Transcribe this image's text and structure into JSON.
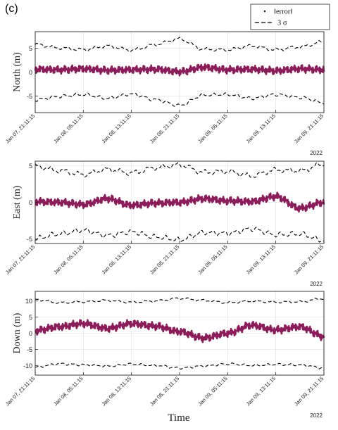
{
  "panel_label": "(c)",
  "legend": {
    "entries": [
      {
        "label": "‖error‖",
        "marker": "dot"
      },
      {
        "label": "3 σ",
        "marker": "dashed-line"
      }
    ]
  },
  "colors": {
    "error": "#8b1d5a",
    "sigma": "#000000",
    "grid": "#e6e6e6",
    "axis": "#262626"
  },
  "xlabel": "Time",
  "year_note": "2022",
  "chart_data": [
    {
      "type": "line",
      "ylabel": "North (m)",
      "ylim": [
        -8.5,
        8.5
      ],
      "yticks": [
        -5,
        0,
        5
      ],
      "grid": true,
      "x_ticklabels": [
        "Jan 07, 21:11:15",
        "Jan 08, 05:11:15",
        "Jan 08, 13:11:15",
        "Jan 08, 21:11:15",
        "Jan 09, 05:11:15",
        "Jan 09, 13:11:15",
        "Jan 09, 21:11:15"
      ],
      "x": [
        0,
        4,
        8,
        12,
        16,
        20,
        24,
        28,
        32,
        36,
        40,
        44,
        48
      ],
      "series": [
        {
          "name": "‖error‖",
          "values": [
            0.6,
            0.5,
            0.7,
            0.4,
            0.5,
            0.6,
            0.1,
            1.0,
            0.5,
            0.6,
            0.3,
            0.7,
            0.5
          ]
        },
        {
          "name": "3 σ",
          "values": [
            5.8,
            5.1,
            4.7,
            5.5,
            4.6,
            5.8,
            7.0,
            4.8,
            4.7,
            5.5,
            4.7,
            5.3,
            6.4
          ]
        }
      ]
    },
    {
      "type": "line",
      "ylabel": "East (m)",
      "ylim": [
        -5.6,
        5.6
      ],
      "yticks": [
        -5,
        0,
        5
      ],
      "grid": true,
      "x_ticklabels": [
        "Jan 07, 21:11:15",
        "Jan 08, 05:11:15",
        "Jan 08, 13:11:15",
        "Jan 08, 21:11:15",
        "Jan 09, 05:11:15",
        "Jan 09, 13:11:15",
        "Jan 09, 21:11:15"
      ],
      "x": [
        0,
        4,
        8,
        12,
        16,
        20,
        24,
        28,
        32,
        36,
        40,
        44,
        48
      ],
      "series": [
        {
          "name": "‖error‖",
          "values": [
            0.1,
            0.0,
            -0.3,
            0.5,
            -0.4,
            -0.1,
            0.0,
            0.5,
            0.2,
            0.1,
            0.8,
            -0.8,
            0.0
          ]
        },
        {
          "name": "3 σ",
          "values": [
            4.9,
            4.3,
            3.8,
            4.5,
            4.0,
            4.7,
            5.1,
            4.1,
            4.2,
            3.6,
            4.4,
            4.3,
            5.2
          ]
        }
      ]
    },
    {
      "type": "line",
      "ylabel": "Down (m)",
      "ylim": [
        -13,
        13
      ],
      "yticks": [
        -10,
        -5,
        0,
        5,
        10
      ],
      "grid": true,
      "x_ticklabels": [
        "Jan 07, 21:11:15",
        "Jan 08, 05:11:15",
        "Jan 08, 13:11:15",
        "Jan 08, 21:11:15",
        "Jan 09, 05:11:15",
        "Jan 09, 13:11:15",
        "Jan 09, 21:11:15"
      ],
      "x": [
        0,
        4,
        8,
        12,
        16,
        20,
        24,
        28,
        32,
        36,
        40,
        44,
        48
      ],
      "series": [
        {
          "name": "‖error‖",
          "values": [
            0.8,
            2.0,
            3.0,
            1.5,
            3.0,
            2.2,
            0.5,
            -1.5,
            0.0,
            2.5,
            1.0,
            2.0,
            -1.0
          ]
        },
        {
          "name": "3 σ",
          "values": [
            10.5,
            9.5,
            9.8,
            10.2,
            9.6,
            10.0,
            10.8,
            10.2,
            9.5,
            10.0,
            9.7,
            9.8,
            10.8
          ]
        }
      ]
    }
  ]
}
